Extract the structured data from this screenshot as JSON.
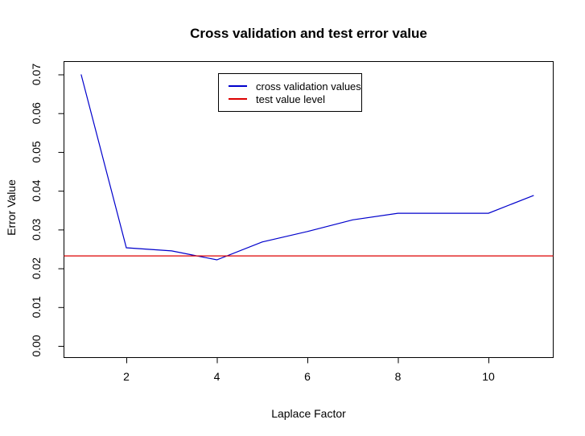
{
  "figure": {
    "background": "#ffffff",
    "title": "Cross validation and test error value",
    "xlabel": "Laplace Factor",
    "ylabel": "Error Value"
  },
  "chart_data": {
    "type": "line",
    "title": "Cross validation and test error value",
    "xlabel": "Laplace Factor",
    "ylabel": "Error Value",
    "x_ticks": [
      "2",
      "4",
      "6",
      "8",
      "10"
    ],
    "y_ticks": [
      "0.00",
      "0.01",
      "0.02",
      "0.03",
      "0.04",
      "0.05",
      "0.06",
      "0.07"
    ],
    "xlim": [
      0.6,
      11.4
    ],
    "ylim": [
      -0.003,
      0.0735
    ],
    "grid": false,
    "legend_position": "upper-center-left",
    "series": [
      {
        "name": "cross validation values",
        "color": "#0000CC",
        "style": "line",
        "x": [
          1,
          2,
          3,
          4,
          5,
          6,
          7,
          8,
          9,
          10,
          11
        ],
        "values": [
          0.07,
          0.0253,
          0.0245,
          0.0222,
          0.0268,
          0.0295,
          0.0325,
          0.0342,
          0.0342,
          0.0342,
          0.0388
        ]
      },
      {
        "name": "test value level",
        "color": "#DD0000",
        "style": "hline",
        "value": 0.0232
      }
    ]
  }
}
